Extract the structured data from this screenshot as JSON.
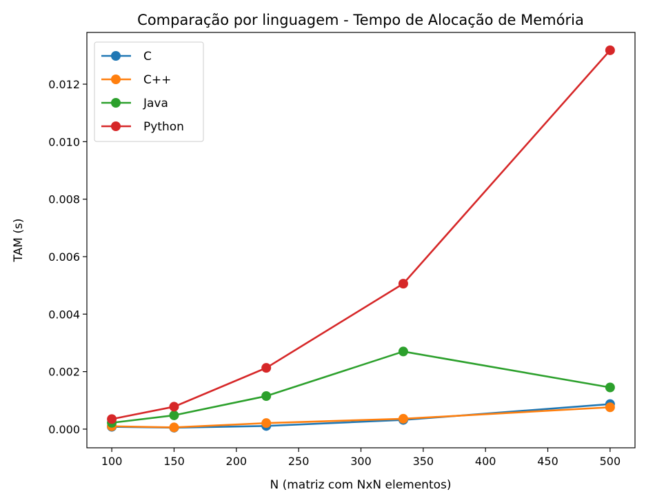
{
  "chart_data": {
    "type": "line",
    "title": "Comparação por linguagem - Tempo de Alocação de Memória",
    "xlabel": "N (matriz com NxN elementos)",
    "ylabel": "TAM (s)",
    "xlim": [
      80,
      520
    ],
    "ylim": [
      -0.00065,
      0.0138
    ],
    "x_ticks": [
      100,
      150,
      200,
      250,
      300,
      350,
      400,
      450,
      500
    ],
    "y_ticks": [
      0.0,
      0.002,
      0.004,
      0.006,
      0.008,
      0.01,
      0.012
    ],
    "y_tick_labels": [
      "0.000",
      "0.002",
      "0.004",
      "0.006",
      "0.008",
      "0.010",
      "0.012"
    ],
    "x": [
      100,
      150,
      224,
      334,
      500
    ],
    "grid": false,
    "legend_position": "top-left",
    "series": [
      {
        "name": "C",
        "color": "#1f77b4",
        "values": [
          8e-05,
          5e-05,
          0.00011,
          0.00032,
          0.00087
        ]
      },
      {
        "name": "C++",
        "color": "#ff7f0e",
        "values": [
          0.0001,
          6e-05,
          0.00021,
          0.00036,
          0.00076
        ]
      },
      {
        "name": "Java",
        "color": "#2ca02c",
        "values": [
          0.00022,
          0.00048,
          0.00115,
          0.0027,
          0.00145
        ]
      },
      {
        "name": "Python",
        "color": "#d62728",
        "values": [
          0.00035,
          0.00078,
          0.00213,
          0.00506,
          0.01318
        ]
      }
    ]
  }
}
